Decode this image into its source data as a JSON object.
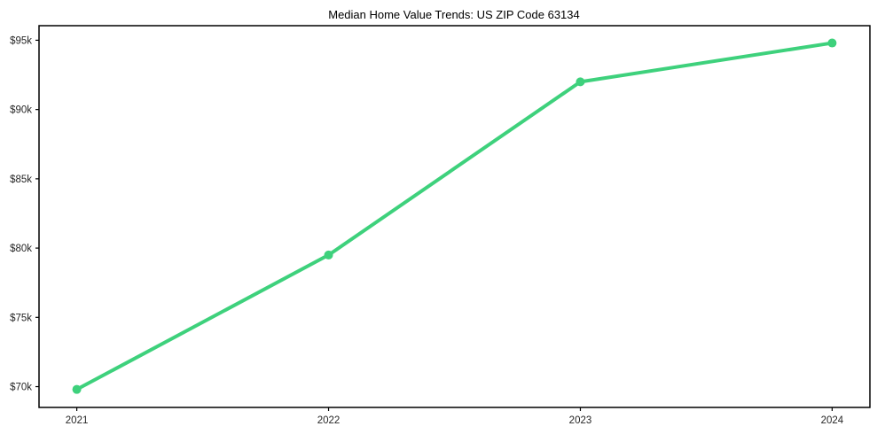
{
  "chart_data": {
    "type": "line",
    "title": "Median Home Value Trends: US ZIP Code 63134",
    "x": [
      2021,
      2022,
      2023,
      2024
    ],
    "series": [
      {
        "name": "Median Home Value",
        "values": [
          69800,
          79500,
          92000,
          94800
        ]
      }
    ],
    "x_tick_labels": [
      "2021",
      "2022",
      "2023",
      "2024"
    ],
    "y_tick_values": [
      70000,
      75000,
      80000,
      85000,
      90000,
      95000
    ],
    "y_tick_labels": [
      "$70k",
      "$75k",
      "$80k",
      "$85k",
      "$90k",
      "$95k"
    ],
    "xlim": [
      2020.85,
      2024.15
    ],
    "ylim": [
      68500,
      96050
    ],
    "xlabel": "",
    "ylabel": "",
    "grid": false,
    "legend": "none",
    "line_color": "#3ed17c",
    "marker_color": "#3ed17c",
    "axis_color": "#000000",
    "tick_label_color": "#262626"
  }
}
